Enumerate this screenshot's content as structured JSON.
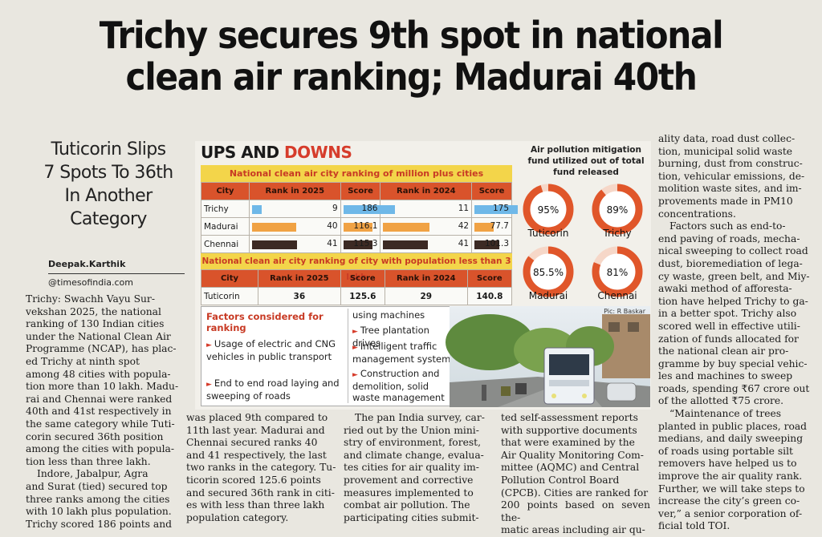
{
  "headline": {
    "line1": "Trichy secures 9th spot in national",
    "line2": "clean air ranking; Madurai 40th"
  },
  "subhead": [
    "Tuticorin Slips",
    "7 Spots To 36th",
    "In Another",
    "Category"
  ],
  "byline": {
    "name": "Deepak.Karthik",
    "handle": "@timesofindia.com"
  },
  "col1": [
    "Trichy: Swachh Vayu Sur-",
    "vekshan 2025, the national",
    "ranking of 130 Indian cities",
    "under the National Clean Air",
    "Programme (NCAP), has plac-",
    "ed Trichy at ninth spot",
    "among 48 cities with popula-",
    "tion more than 10 lakh. Madu-",
    "rai and Chennai were ranked",
    "40th and 41st respectively in",
    "the same category while Tuti-",
    "corin secured 36th position",
    "among the cities with popula-",
    "tion less than three lakh.",
    "Indore, Jabalpur, Agra",
    "and Surat (tied) secured top",
    "three ranks among the cities",
    "with 10 lakh plus population.",
    "Trichy scored 186 points and"
  ],
  "col2": [
    "was placed 9th compared to",
    "11th last year. Madurai and",
    "Chennai secured ranks 40",
    "and 41 respectively, the last",
    "two ranks in the category. Tu-",
    "ticorin scored 125.6 points",
    "and secured 36th rank in citi-",
    "es with less than three lakh",
    "population category."
  ],
  "col3": [
    "The pan India survey, car-",
    "ried out by the Union mini-",
    "stry of environment, forest,",
    "and climate change, evalua-",
    "tes cities for air quality im-",
    "provement and corrective",
    "measures implemented to",
    "combat air pollution. The",
    "participating cities submit-"
  ],
  "col4": [
    "ted self-assessment reports",
    "with supportive documents",
    "that were examined by the",
    "Air Quality Monitoring Com-",
    "mittee (AQMC) and Central",
    "Pollution Control Board",
    "(CPCB). Cities are ranked for",
    "200 points based on seven the-",
    "matic areas including air qu-"
  ],
  "col5": [
    "ality data, road dust collec-",
    "tion, municipal solid waste",
    "burning, dust from construc-",
    "tion, vehicular emissions, de-",
    "molition waste sites, and im-",
    "provements made in PM10",
    "concentrations.",
    "Factors such as end-to-",
    "end paving of roads, mecha-",
    "nical sweeping to collect road",
    "dust, bioremediation of lega-",
    "cy waste, green belt, and Miy-",
    "awaki method of afforesta-",
    "tion have helped Trichy to ga-",
    "in a better spot. Trichy also",
    "scored well in effective utili-",
    "zation of funds allocated for",
    "the national clean air pro-",
    "gramme by buy special vehic-",
    "les and machines to sweep",
    "roads, spending ₹67 crore out",
    "of the allotted ₹75 crore.",
    "“Maintenance of trees",
    "planted in public places, road",
    "medians, and daily sweeping",
    "of roads using portable silt",
    "removers have helped us to",
    "improve the air quality rank.",
    "Further, we will take steps to",
    "increase the city’s green co-",
    "ver,” a senior corporation of-",
    "ficial told TOI."
  ],
  "infographic": {
    "title_a": "UPS AND ",
    "title_b": "DOWNS",
    "table1_caption": "National clean air city ranking of million plus cities",
    "table2_caption": "National clean air city ranking of city with population less than 3 lakh",
    "headers": [
      "City",
      "Rank in 2025",
      "Score",
      "Rank in 2024",
      "Score"
    ],
    "colors": {
      "trichy": "#6fb8e8",
      "madurai": "#f0a244",
      "chennai": "#3c2a24",
      "accent": "#d63c2b",
      "header": "#d9532b",
      "caption": "#f3d54a"
    },
    "fund_title": "Air pollution mitigation fund utilized out of total fund released",
    "factors_title": "Factors considered for ranking",
    "factors_left": [
      "Usage of electric and CNG vehicles in public transport",
      "End to end road laying and sweeping of roads"
    ],
    "factors_right_lead": "using machines",
    "factors_right": [
      "Tree plantation drives",
      "Intelligent traffic management system",
      "Construction and demolition, solid waste management"
    ],
    "photo_credit": "Pic: R Baskar"
  },
  "chart_data": [
    {
      "type": "table",
      "title": "National clean air city ranking of million plus cities",
      "columns": [
        "City",
        "Rank in 2025",
        "Score",
        "Rank in 2024",
        "Score"
      ],
      "rows": [
        [
          "Trichy",
          "9",
          "186",
          "11",
          "175"
        ],
        [
          "Madurai",
          "40",
          "116.1",
          "42",
          "77.7"
        ],
        [
          "Chennai",
          "41",
          "115.3",
          "41",
          "101.3"
        ]
      ]
    },
    {
      "type": "table",
      "title": "National clean air city ranking of city with population less than 3 lakh",
      "columns": [
        "City",
        "Rank in 2025",
        "Score",
        "Rank in 2024",
        "Score"
      ],
      "rows": [
        [
          "Tuticorin",
          "36",
          "125.6",
          "29",
          "140.8"
        ]
      ]
    },
    {
      "type": "pie",
      "title": "Air pollution mitigation fund utilized out of total fund released",
      "categories": [
        "Tuticorin",
        "Trichy",
        "Madurai",
        "Chennai"
      ],
      "values": [
        95,
        89,
        85.5,
        81
      ],
      "labels": [
        "95%",
        "89%",
        "85.5%",
        "81%"
      ]
    }
  ]
}
